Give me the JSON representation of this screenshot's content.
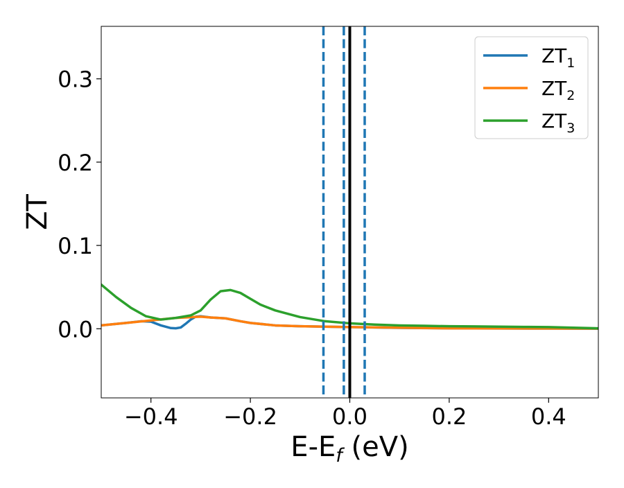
{
  "chart_data": {
    "type": "line",
    "xlabel_main": "E-E",
    "xlabel_sub": "f",
    "xlabel_tail": " (eV)",
    "ylabel": "ZT",
    "xlim": [
      -0.5,
      0.5
    ],
    "ylim": [
      -0.083,
      0.363
    ],
    "xticks": [
      -0.4,
      -0.2,
      0.0,
      0.2,
      0.4
    ],
    "xtick_labels": [
      "−0.4",
      "−0.2",
      "0.0",
      "0.2",
      "0.4"
    ],
    "yticks": [
      0.0,
      0.1,
      0.2,
      0.3
    ],
    "ytick_labels": [
      "0.0",
      "0.1",
      "0.2",
      "0.3"
    ],
    "grid": false,
    "legend_position": "top-right",
    "vlines": [
      {
        "x": -0.053,
        "style": "dashed",
        "color": "#1f77b4"
      },
      {
        "x": -0.012,
        "style": "dashed",
        "color": "#1f77b4"
      },
      {
        "x": 0.0,
        "style": "solid",
        "color": "#000000"
      },
      {
        "x": 0.03,
        "style": "dashed",
        "color": "#1f77b4"
      }
    ],
    "series": [
      {
        "name_main": "ZT",
        "name_sub": "1",
        "color": "#1f77b4",
        "x": [
          -0.5,
          -0.45,
          -0.42,
          -0.4,
          -0.38,
          -0.36,
          -0.35,
          -0.34,
          -0.33,
          -0.32,
          -0.31,
          -0.3,
          -0.28,
          -0.25,
          -0.22,
          -0.2,
          -0.15,
          -0.1,
          -0.05,
          0.0,
          0.1,
          0.2,
          0.3,
          0.4,
          0.5
        ],
        "y": [
          0.004,
          0.007,
          0.009,
          0.0085,
          0.004,
          0.0008,
          0.0005,
          0.0015,
          0.006,
          0.011,
          0.0145,
          0.015,
          0.0135,
          0.0125,
          0.009,
          0.007,
          0.004,
          0.003,
          0.0025,
          0.002,
          0.001,
          0.0005,
          0.0003,
          0.0002,
          0.0001
        ]
      },
      {
        "name_main": "ZT",
        "name_sub": "2",
        "color": "#ff7f0e",
        "x": [
          -0.5,
          -0.45,
          -0.4,
          -0.35,
          -0.3,
          -0.28,
          -0.25,
          -0.22,
          -0.2,
          -0.15,
          -0.1,
          -0.05,
          0.0,
          0.1,
          0.2,
          0.3,
          0.4,
          0.5
        ],
        "y": [
          0.004,
          0.007,
          0.01,
          0.013,
          0.0145,
          0.0135,
          0.0125,
          0.009,
          0.007,
          0.004,
          0.003,
          0.0025,
          0.002,
          0.0012,
          0.0005,
          0.0004,
          0.0003,
          0.0002
        ]
      },
      {
        "name_main": "ZT",
        "name_sub": "3",
        "color": "#2ca02c",
        "x": [
          -0.5,
          -0.47,
          -0.44,
          -0.41,
          -0.38,
          -0.35,
          -0.32,
          -0.3,
          -0.28,
          -0.26,
          -0.24,
          -0.22,
          -0.2,
          -0.18,
          -0.15,
          -0.1,
          -0.05,
          0.0,
          0.05,
          0.1,
          0.15,
          0.2,
          0.25,
          0.3,
          0.35,
          0.4,
          0.45,
          0.5
        ],
        "y": [
          0.053,
          0.038,
          0.025,
          0.015,
          0.011,
          0.013,
          0.016,
          0.022,
          0.035,
          0.045,
          0.0465,
          0.043,
          0.036,
          0.029,
          0.022,
          0.014,
          0.009,
          0.0065,
          0.005,
          0.004,
          0.0035,
          0.003,
          0.0028,
          0.0025,
          0.0022,
          0.002,
          0.0012,
          0.0005
        ]
      }
    ]
  }
}
